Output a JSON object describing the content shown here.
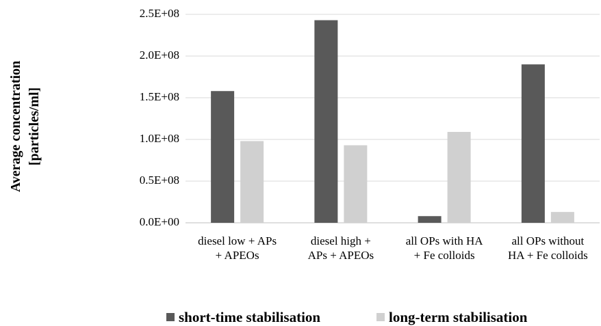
{
  "chart_data": {
    "type": "bar",
    "y_label": "Average concentration\n[particles/ml]",
    "categories": [
      "diesel low + APs\n+ APEOs",
      "diesel high +\nAPs + APEOs",
      "all OPs with HA\n+ Fe colloids",
      "all OPs without\nHA + Fe colloids"
    ],
    "series": [
      {
        "name": "short-time stabilisation",
        "color": "#595959",
        "values": [
          158000000,
          243000000,
          8000000,
          190000000
        ]
      },
      {
        "name": "long-term stabilisation",
        "color": "#d0d0d0",
        "values": [
          98000000,
          93000000,
          109000000,
          13000000
        ]
      }
    ],
    "ylim": [
      0,
      250000000
    ],
    "yticks": [
      {
        "value": 0,
        "label": "0.0E+00"
      },
      {
        "value": 50000000,
        "label": "0.5E+08"
      },
      {
        "value": 100000000,
        "label": "1.0E+08"
      },
      {
        "value": 150000000,
        "label": "1.5E+08"
      },
      {
        "value": 200000000,
        "label": "2.0E+08"
      },
      {
        "value": 250000000,
        "label": "2.5E+08"
      }
    ],
    "grid": true,
    "legend": "bottom"
  }
}
